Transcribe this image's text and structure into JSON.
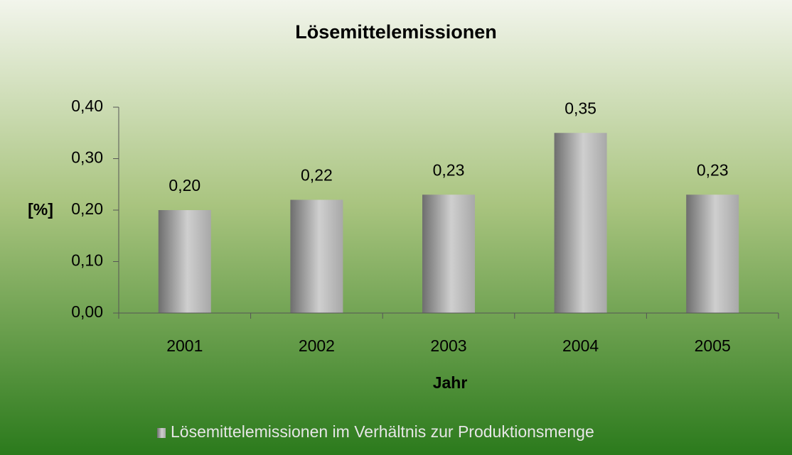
{
  "chart_data": {
    "type": "bar",
    "title": "Lösemittelemissionen",
    "categories": [
      "2001",
      "2002",
      "2003",
      "2004",
      "2005"
    ],
    "series": [
      {
        "name": "Lösemittelemissionen im Verhältnis zur Produktionsmenge",
        "values": [
          0.2,
          0.22,
          0.23,
          0.35,
          0.23
        ],
        "value_labels": [
          "0,20",
          "0,22",
          "0,23",
          "0,35",
          "0,23"
        ]
      }
    ],
    "ylim": [
      0,
      0.4
    ],
    "yticks": [
      {
        "value": 0,
        "label": "0,00"
      },
      {
        "value": 0.1,
        "label": "0,10"
      },
      {
        "value": 0.2,
        "label": "0,20"
      },
      {
        "value": 0.3,
        "label": "0,30"
      },
      {
        "value": 0.4,
        "label": "0,40"
      }
    ],
    "y_label": "[%]",
    "x_label": "Jahr"
  }
}
